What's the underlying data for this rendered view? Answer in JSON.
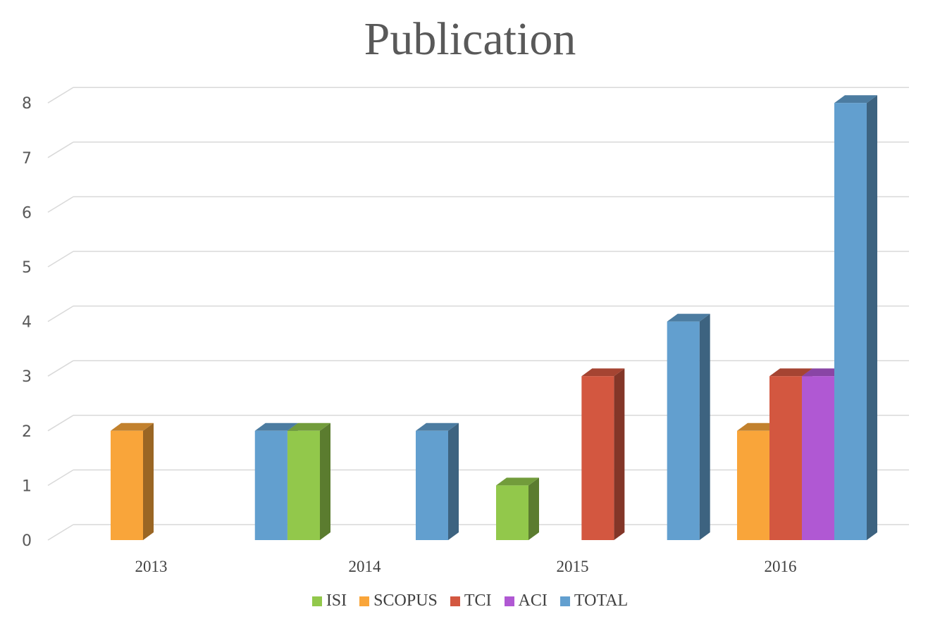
{
  "chart_data": {
    "type": "bar",
    "title": "Publication",
    "categories": [
      "2013",
      "2014",
      "2015",
      "2016"
    ],
    "series": [
      {
        "name": "ISI",
        "color": "#92C84B",
        "values": [
          0,
          2,
          1,
          0
        ]
      },
      {
        "name": "SCOPUS",
        "color": "#F9A53A",
        "values": [
          2,
          0,
          0,
          2
        ]
      },
      {
        "name": "TCI",
        "color": "#D35740",
        "values": [
          0,
          0,
          3,
          3
        ]
      },
      {
        "name": "ACI",
        "color": "#B058D3",
        "values": [
          0,
          0,
          0,
          3
        ]
      },
      {
        "name": "TOTAL",
        "color": "#629FCF",
        "values": [
          2,
          2,
          4,
          8
        ]
      }
    ],
    "yticks": [
      "0",
      "1",
      "2",
      "3",
      "4",
      "5",
      "6",
      "7",
      "8"
    ],
    "ylim": [
      0,
      8
    ],
    "grid": true,
    "legend_position": "bottom",
    "style": "3d-column"
  }
}
